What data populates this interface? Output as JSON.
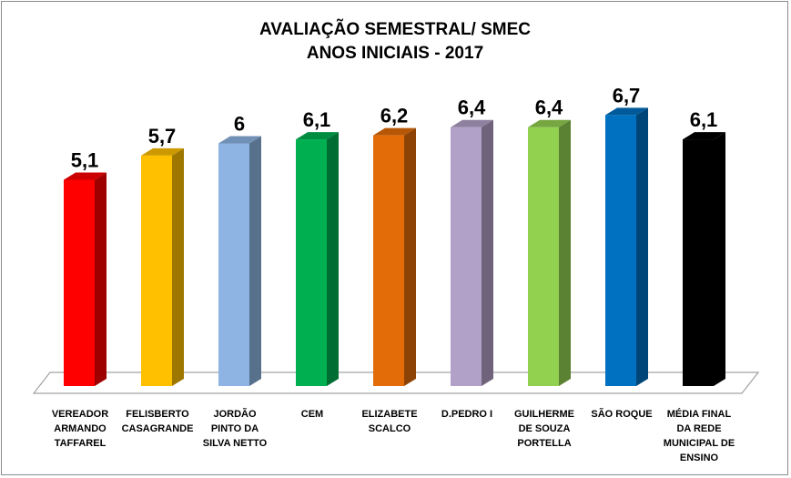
{
  "chart_data": {
    "type": "bar",
    "title": "AVALIAÇÃO SEMESTRAL/ SMEC",
    "subtitle": "ANOS INICIAIS - 2017",
    "value_labels": [
      "5,1",
      "5,7",
      "6",
      "6,1",
      "6,2",
      "6,4",
      "6,4",
      "6,7",
      "6,1"
    ],
    "categories": [
      [
        "VEREADOR",
        "ARMANDO",
        "TAFFAREL"
      ],
      [
        "FELISBERTO",
        "CASAGRANDE"
      ],
      [
        "JORDÃO",
        "PINTO DA",
        "SILVA NETTO"
      ],
      [
        "CEM"
      ],
      [
        "ELIZABETE",
        "SCALCO"
      ],
      [
        "D.PEDRO I"
      ],
      [
        "GUILHERME",
        "DE SOUZA",
        "PORTELLA"
      ],
      [
        "SÃO ROQUE"
      ],
      [
        "MÉDIA FINAL",
        "DA REDE",
        "MUNICIPAL DE",
        "ENSINO"
      ]
    ],
    "values": [
      5.1,
      5.7,
      6.0,
      6.1,
      6.2,
      6.4,
      6.4,
      6.7,
      6.1
    ],
    "colors": [
      "#ff0000",
      "#ffc000",
      "#8db4e2",
      "#00b050",
      "#e36c09",
      "#b1a0c7",
      "#92d050",
      "#0070c0",
      "#000000"
    ],
    "ylim": [
      0,
      7.7
    ],
    "grid": false,
    "legend": "none"
  }
}
